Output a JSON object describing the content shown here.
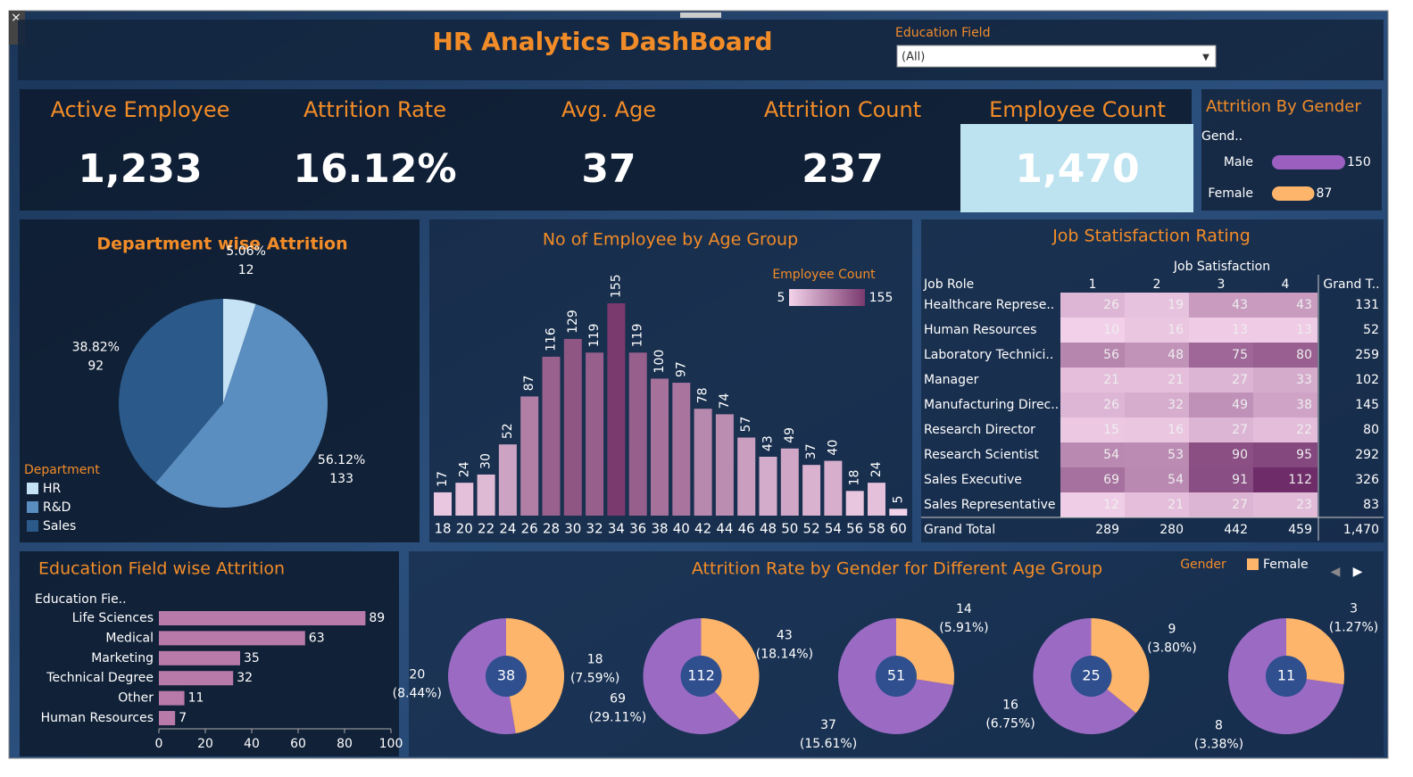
{
  "header": {
    "title": "HR Analytics DashBoard",
    "filter_label": "Education Field",
    "filter_value": "(All)"
  },
  "kpis": [
    {
      "label": "Active  Employee",
      "value": "1,233"
    },
    {
      "label": "Attrition  Rate",
      "value": "16.12%"
    },
    {
      "label": "Avg. Age",
      "value": "37"
    },
    {
      "label": "Attrition Count",
      "value": "237"
    },
    {
      "label": "Employee Count",
      "value": "1,470"
    }
  ],
  "chart_data": [
    {
      "type": "hbar-mini",
      "title": "Attrition By Gender",
      "axis_label": "Gend..",
      "categories": [
        "Male",
        "Female"
      ],
      "values": [
        150,
        87
      ],
      "colors": [
        "#9b5fc0",
        "#fdb56b"
      ]
    },
    {
      "type": "pie",
      "title": "Department wise Attrition",
      "legend_title": "Department",
      "categories": [
        "HR",
        "R&D",
        "Sales"
      ],
      "values": [
        12,
        133,
        92
      ],
      "percent_labels": [
        "5.06%",
        "56.12%",
        "38.82%"
      ],
      "colors": [
        "#c6e2f5",
        "#5b8ec0",
        "#2b5a8a"
      ]
    },
    {
      "type": "bar",
      "title": "No of Employee by Age Group",
      "legend_title": "Employee Count",
      "colorscale": [
        5,
        155
      ],
      "colors": [
        "#f3d3ea",
        "#7a3a6e"
      ],
      "categories": [
        "18",
        "20",
        "22",
        "24",
        "26",
        "28",
        "30",
        "32",
        "34",
        "36",
        "38",
        "40",
        "42",
        "44",
        "46",
        "48",
        "50",
        "52",
        "54",
        "56",
        "58",
        "60"
      ],
      "values": [
        17,
        24,
        30,
        52,
        87,
        116,
        129,
        119,
        155,
        119,
        100,
        97,
        78,
        74,
        57,
        43,
        49,
        37,
        40,
        18,
        24,
        5
      ]
    },
    {
      "type": "heatmap",
      "title": "Job Statisfaction Rating",
      "column_header": "Job Satisfaction",
      "row_header": "Job Role",
      "columns": [
        "1",
        "2",
        "3",
        "4"
      ],
      "total_header": "Grand T..",
      "colors": [
        "#f3d0e9",
        "#6e2c68"
      ],
      "rows": [
        "Healthcare Represe..",
        "Human Resources",
        "Laboratory Technici..",
        "Manager",
        "Manufacturing Direc..",
        "Research Director",
        "Research Scientist",
        "Sales Executive",
        "Sales Representative"
      ],
      "values": [
        [
          26,
          19,
          43,
          43
        ],
        [
          10,
          16,
          13,
          13
        ],
        [
          56,
          48,
          75,
          80
        ],
        [
          21,
          21,
          27,
          33
        ],
        [
          26,
          32,
          49,
          38
        ],
        [
          15,
          16,
          27,
          22
        ],
        [
          54,
          53,
          90,
          95
        ],
        [
          69,
          54,
          91,
          112
        ],
        [
          12,
          21,
          27,
          23
        ]
      ],
      "row_totals": [
        131,
        52,
        259,
        102,
        145,
        80,
        292,
        326,
        83
      ],
      "total_label": "Grand Total",
      "column_totals": [
        289,
        280,
        442,
        459
      ],
      "grand_total": "1,470"
    },
    {
      "type": "hbar",
      "title": "Education Field wise  Attrition",
      "axis_label": "Education Fie..",
      "categories": [
        "Life Sciences",
        "Medical",
        "Marketing",
        "Technical Degree",
        "Other",
        "Human Resources"
      ],
      "values": [
        89,
        63,
        35,
        32,
        11,
        7
      ],
      "color": "#b87aa8",
      "xlim": [
        0,
        100
      ],
      "xticks": [
        0,
        20,
        40,
        60,
        80,
        100
      ]
    },
    {
      "type": "donut",
      "title": "Attrition Rate by Gender for Different Age Group",
      "legend_title": "Gender",
      "totals": [
        38,
        112,
        51,
        25,
        11
      ],
      "series": [
        {
          "name": "Female",
          "color": "#fdb56b",
          "values": [
            18,
            43,
            14,
            9,
            3
          ],
          "percent_labels": [
            "(7.59%)",
            "(18.14%)",
            "(5.91%)",
            "(3.80%)",
            "(1.27%)"
          ]
        },
        {
          "color": "#9b6bc4",
          "values": [
            20,
            69,
            37,
            16,
            8
          ],
          "percent_labels": [
            "(8.44%)",
            "(29.11%)",
            "(15.61%)",
            "(6.75%)",
            "(3.38%)"
          ]
        }
      ],
      "center_color": "#2f4f8f"
    }
  ]
}
